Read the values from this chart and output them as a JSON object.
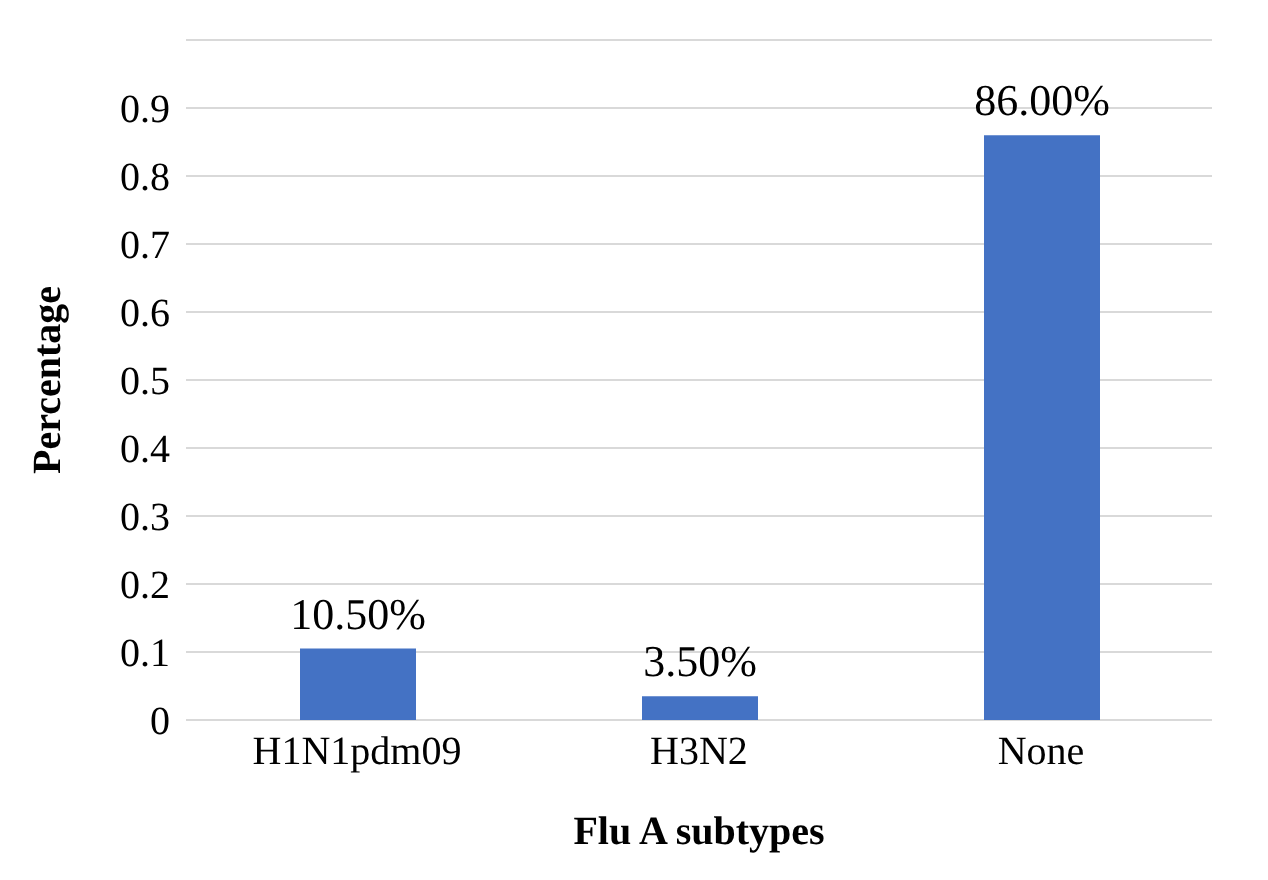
{
  "chart_data": {
    "type": "bar",
    "xlabel": "Flu A subtypes",
    "ylabel": "Percentage",
    "categories": [
      "H1N1pdm09",
      "H3N2",
      "None"
    ],
    "values": [
      0.105,
      0.035,
      0.86
    ],
    "value_labels": [
      "10.50%",
      "3.50%",
      "86.00%"
    ],
    "color": "#4472c4",
    "ylim": [
      0,
      1
    ],
    "yticks": [
      0,
      0.1,
      0.2,
      0.3,
      0.4,
      0.5,
      0.6,
      0.7,
      0.8,
      0.9,
      {
        "value": 1,
        "label": null
      }
    ],
    "grid": "y"
  }
}
